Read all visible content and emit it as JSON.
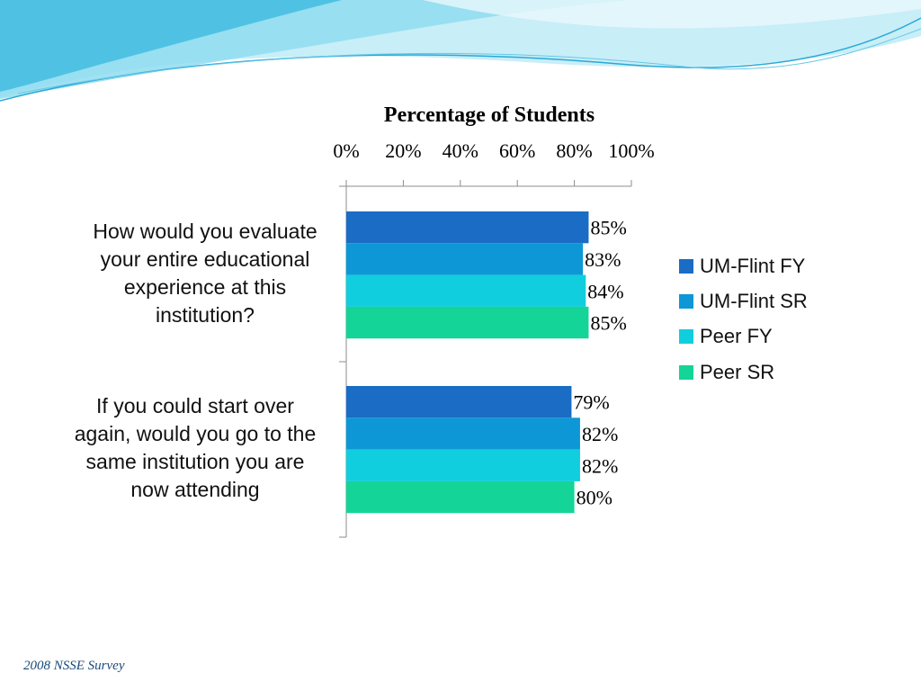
{
  "colors": {
    "wave_light": "#bfeaf5",
    "wave_mid": "#7fd6ee",
    "wave_deep": "#3fb6dc",
    "axis": "#8c8c8c"
  },
  "footer": {
    "text": "2008  NSSE Survey"
  },
  "chart_data": {
    "type": "bar",
    "orientation": "horizontal",
    "title": "Percentage of Students",
    "x_axis_position": "top",
    "xlim": [
      0,
      100
    ],
    "x_ticks": [
      "0%",
      "20%",
      "40%",
      "60%",
      "80%",
      "100%"
    ],
    "categories": [
      "How would you evaluate your entire educational experience at this institution?",
      "If you could start over again, would you go to the same institution you are now attending"
    ],
    "category_lines": [
      [
        "How would you evaluate",
        "your entire educational",
        "experience at this",
        "institution?"
      ],
      [
        "If you could start over",
        "again, would you go to the",
        "same institution you are",
        "now attending"
      ]
    ],
    "series": [
      {
        "name": "UM-Flint FY",
        "color": "#1a6cc4",
        "values": [
          85,
          79
        ],
        "labels": [
          "85%",
          "79%"
        ]
      },
      {
        "name": "UM-Flint SR",
        "color": "#0e97d6",
        "values": [
          83,
          82
        ],
        "labels": [
          "83%",
          "82%"
        ]
      },
      {
        "name": "Peer FY",
        "color": "#10cedd",
        "values": [
          84,
          82
        ],
        "labels": [
          "84%",
          "82%"
        ]
      },
      {
        "name": "Peer SR",
        "color": "#14d498",
        "values": [
          85,
          80
        ],
        "labels": [
          "85%",
          "80%"
        ]
      }
    ],
    "legend_position": "right",
    "grid": false
  }
}
